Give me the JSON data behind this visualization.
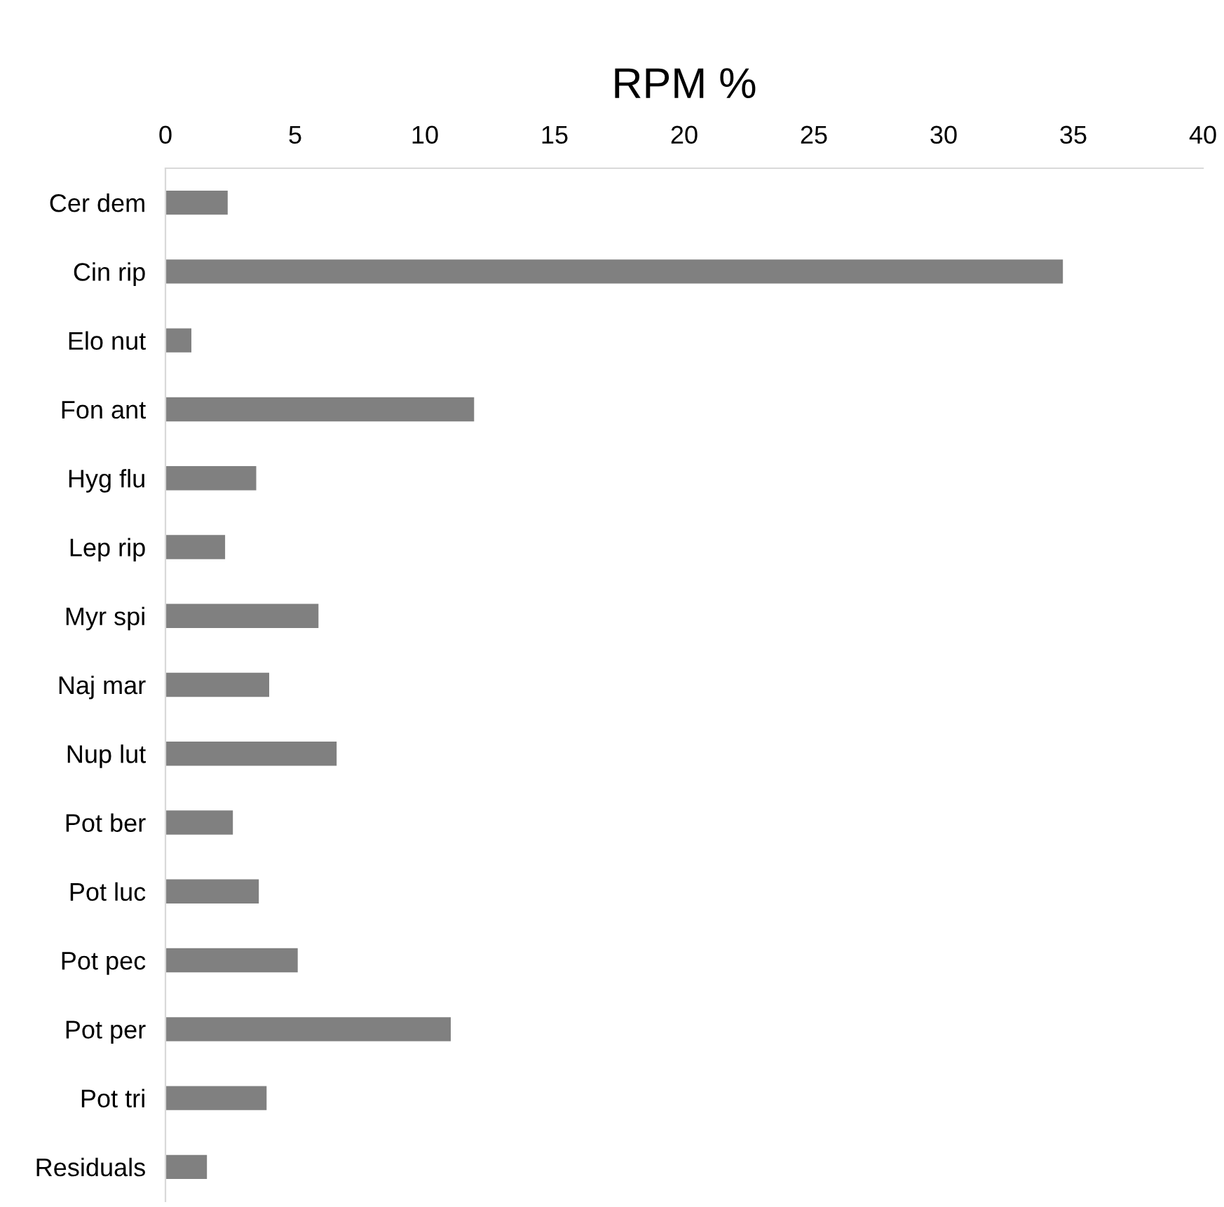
{
  "chart_data": {
    "type": "bar",
    "orientation": "horizontal",
    "xlabel": "RPM %",
    "categories": [
      "Cer dem",
      "Cin rip",
      "Elo nut",
      "Fon ant",
      "Hyg flu",
      "Lep rip",
      "Myr spi",
      "Naj mar",
      "Nup lut",
      "Pot ber",
      "Pot luc",
      "Pot pec",
      "Pot per",
      "Pot tri",
      "Residuals"
    ],
    "values": [
      2.4,
      34.6,
      1.0,
      11.9,
      3.5,
      2.3,
      5.9,
      4.0,
      6.6,
      2.6,
      3.6,
      5.1,
      11.0,
      3.9,
      1.6
    ],
    "color": "#808080",
    "xlim": [
      0,
      40
    ],
    "xticks": [
      0,
      5,
      10,
      15,
      20,
      25,
      30,
      35,
      40
    ],
    "grid": false,
    "legend": false
  }
}
